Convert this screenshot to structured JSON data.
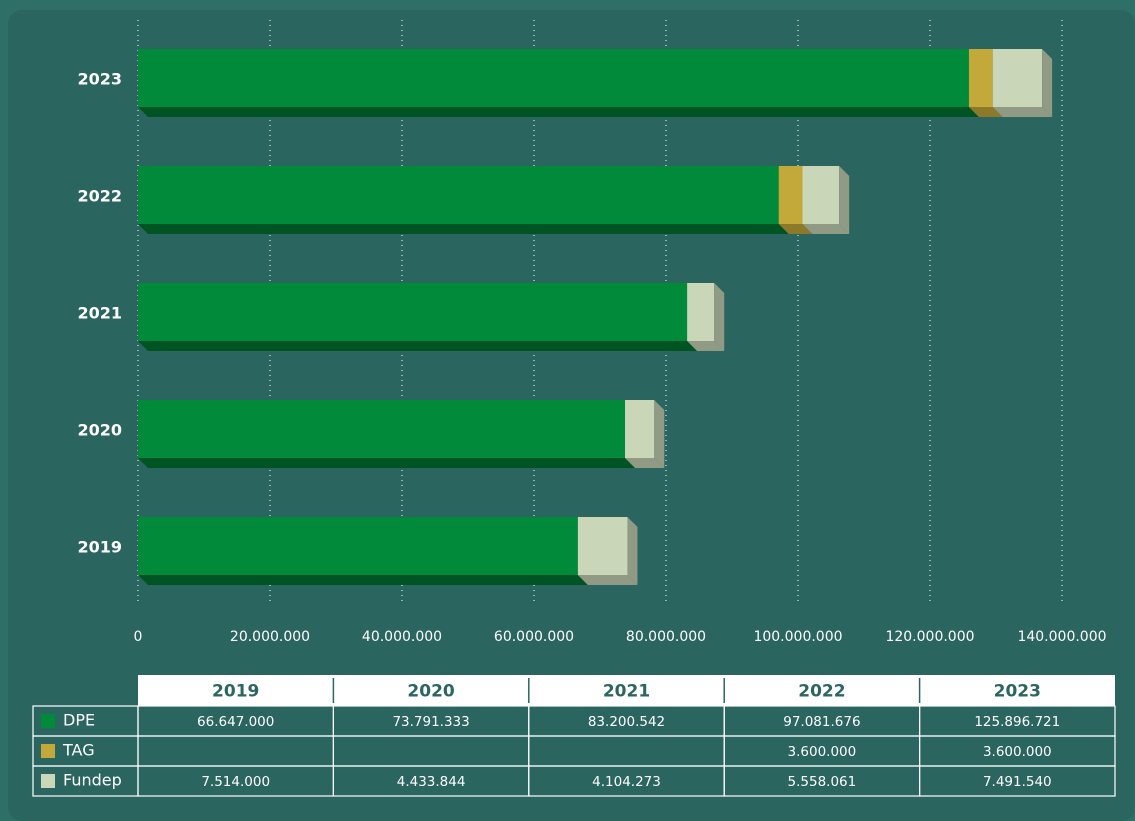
{
  "chart_data": {
    "type": "stacked-bar-horizontal",
    "categories": [
      "2019",
      "2020",
      "2021",
      "2022",
      "2023"
    ],
    "series": [
      {
        "name": "DPE",
        "color": "#008a3a",
        "values": [
          66647000,
          73791333,
          83200542,
          97081676,
          125896721
        ],
        "value_labels": [
          "66.647.000",
          "73.791.333",
          "83.200.542",
          "97.081.676",
          "125.896.721"
        ]
      },
      {
        "name": "TAG",
        "color": "#c2a93a",
        "values": [
          null,
          null,
          null,
          3600000,
          3600000
        ],
        "value_labels": [
          null,
          null,
          null,
          "3.600.000",
          "3.600.000"
        ]
      },
      {
        "name": "Fundep",
        "color": "#c9d6b8",
        "values": [
          7514000,
          4433844,
          4104273,
          5558061,
          7491540
        ],
        "value_labels": [
          "7.514.000",
          "4.433.844",
          "4.104.273",
          "5.558.061",
          "7.491.540"
        ]
      }
    ],
    "xlim": [
      0,
      140000000
    ],
    "xticks": [
      0,
      {
        "value": 20000000,
        "label": "20.000.000"
      },
      {
        "value": 40000000,
        "label": "40.000.000"
      },
      {
        "value": 60000000,
        "label": "60.000.000"
      },
      {
        "value": 80000000,
        "label": "80.000.000"
      },
      {
        "value": 100000000,
        "label": "100.000.000"
      },
      {
        "value": 120000000,
        "label": "120.000.000"
      },
      {
        "value": 140000000,
        "label": "140.000.000"
      }
    ],
    "grid": true
  }
}
